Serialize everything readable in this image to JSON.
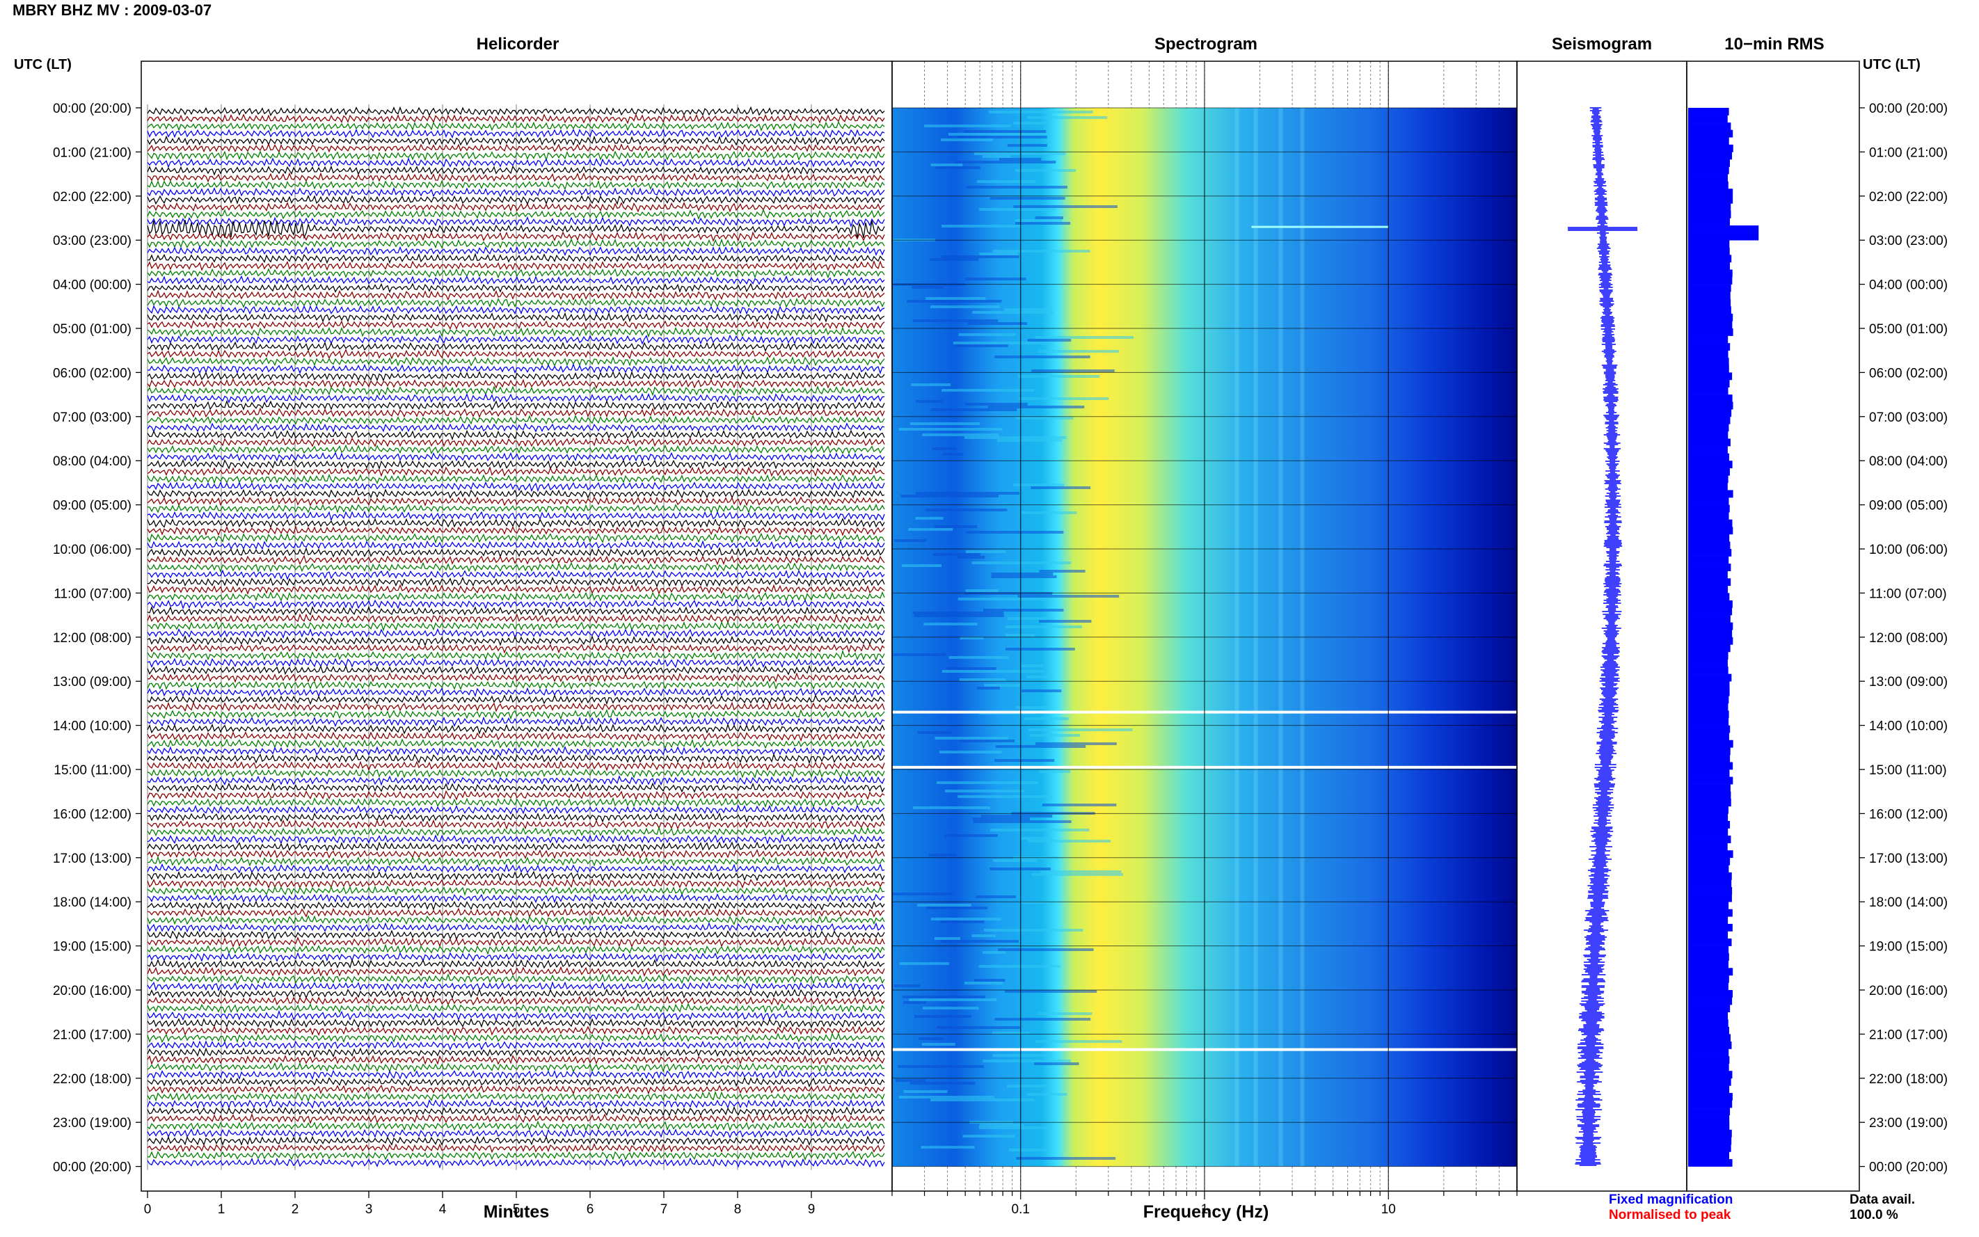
{
  "header": {
    "station": "MBRY BHZ MV : 2009-03-07",
    "utc_label_left": "UTC (LT)",
    "utc_label_right": "UTC (LT)"
  },
  "panels": {
    "helicorder": "Helicorder",
    "spectrogram": "Spectrogram",
    "seismogram": "Seismogram",
    "rms": "10−min RMS"
  },
  "axes": {
    "minutes_label": "Minutes",
    "frequency_label": "Frequency (Hz)"
  },
  "legend": {
    "fixed": "Fixed magnification",
    "normalised": "Normalised to peak",
    "fixed_color": "#0000ff",
    "normalised_color": "#ff0000"
  },
  "availability": {
    "label": "Data avail.",
    "value": "100.0 %"
  },
  "colors": {
    "trace_cycle": [
      "#000000",
      "#8b0000",
      "#008000",
      "#0000ff"
    ],
    "seismogram": "#0000ff",
    "rms_bar": "#0000ff"
  },
  "chart_data": [
    {
      "type": "line",
      "name": "helicorder",
      "xlabel": "Minutes",
      "xlim": [
        0,
        10
      ],
      "x_ticks": [
        "0",
        "1",
        "2",
        "3",
        "4",
        "5",
        "6",
        "7",
        "8",
        "9"
      ],
      "ylabel": "UTC (LT)",
      "y_ticks": [
        "00:00 (20:00)",
        "01:00 (21:00)",
        "02:00 (22:00)",
        "03:00 (23:00)",
        "04:00 (00:00)",
        "05:00 (01:00)",
        "06:00 (02:00)",
        "07:00 (03:00)",
        "08:00 (04:00)",
        "09:00 (05:00)",
        "10:00 (06:00)",
        "11:00 (07:00)",
        "12:00 (08:00)",
        "13:00 (09:00)",
        "14:00 (10:00)",
        "15:00 (11:00)",
        "16:00 (12:00)",
        "17:00 (13:00)",
        "18:00 (14:00)",
        "19:00 (15:00)",
        "20:00 (16:00)",
        "21:00 (17:00)",
        "22:00 (18:00)",
        "23:00 (19:00)",
        "00:00 (20:00)"
      ],
      "traces_per_hour": 6,
      "events": [
        {
          "hour": 2.65,
          "start_min": 0,
          "end_min": 2.2,
          "description": "large event"
        },
        {
          "hour": 2.65,
          "start_min": 9.5,
          "end_min": 9.9,
          "description": "large event"
        }
      ]
    },
    {
      "type": "heatmap",
      "name": "spectrogram",
      "xlabel": "Frequency (Hz)",
      "x_scale": "log",
      "xlim": [
        0.02,
        50
      ],
      "x_ticks": [
        "0.1",
        "1",
        "10"
      ],
      "peak_frequency_range": [
        0.15,
        0.35
      ],
      "colormap": [
        "#00008b",
        "#0000ff",
        "#1e90ff",
        "#00ffff",
        "#ffff00"
      ],
      "gaps_hours": [
        13.7,
        14.95,
        21.35
      ]
    },
    {
      "type": "line",
      "name": "seismogram",
      "color": "#0000ff",
      "spike_hour": 2.75
    },
    {
      "type": "bar",
      "name": "10-min RMS",
      "orientation": "horizontal",
      "color": "#0000ff",
      "base_level": 0.45,
      "spike_hour": 2.75,
      "spike_level": 0.75
    }
  ]
}
